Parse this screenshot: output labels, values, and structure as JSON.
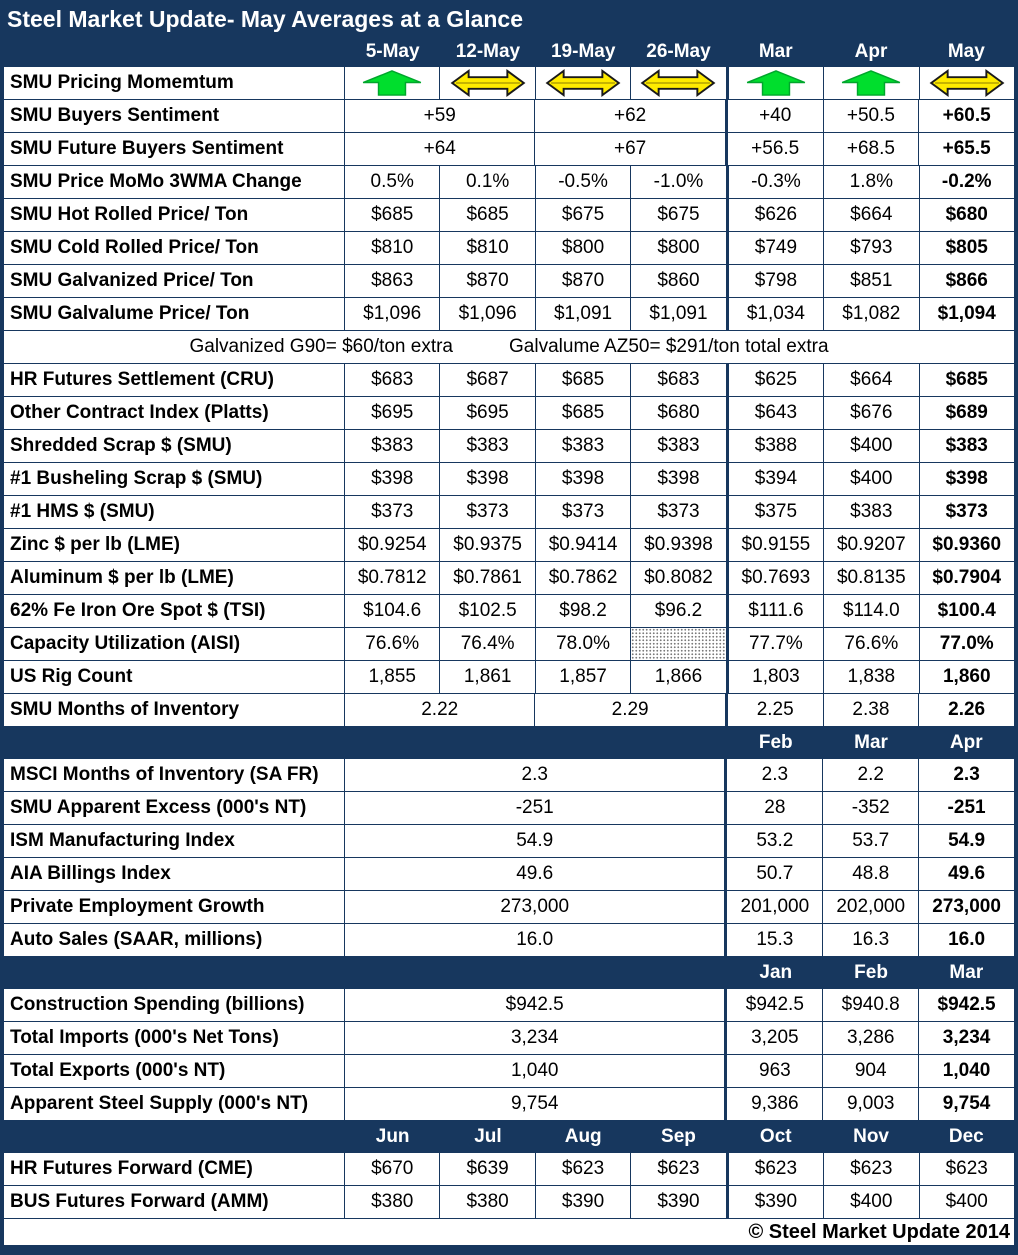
{
  "title": "Steel Market Update- May Averages at a Glance",
  "footer": "© Steel Market Update 2014",
  "colors": {
    "navy": "#17375E",
    "arrow_up_green": "#00DE2D",
    "arrow_up_green_edge": "#00A62C",
    "arrow_flat_yellow": "#FFEB00",
    "arrow_flat_edge": "#1a1a1a"
  },
  "note": {
    "part1": "Galvanized G90= $60/ton extra",
    "part2": "Galvalume AZ50= $291/ton total extra"
  },
  "sections": [
    {
      "header": [
        "5-May",
        "12-May",
        "19-May",
        "26-May",
        "Mar",
        "Apr",
        "May"
      ],
      "rows": [
        {
          "label": "SMU Pricing Momemtum",
          "cells": [
            {
              "i": "up"
            },
            {
              "i": "flat"
            },
            {
              "i": "flat"
            },
            {
              "i": "flat"
            },
            {
              "i": "up"
            },
            {
              "i": "up"
            },
            {
              "i": "flat"
            }
          ]
        },
        {
          "label": "SMU Buyers Sentiment",
          "cells": [
            {
              "t": "+59",
              "s": 2
            },
            {
              "t": "+62",
              "s": 2
            },
            {
              "t": "+40"
            },
            {
              "t": "+50.5"
            },
            {
              "t": "+60.5",
              "b": 1
            }
          ]
        },
        {
          "label": "SMU Future Buyers Sentiment",
          "cells": [
            {
              "t": "+64",
              "s": 2
            },
            {
              "t": "+67",
              "s": 2
            },
            {
              "t": "+56.5"
            },
            {
              "t": "+68.5"
            },
            {
              "t": "+65.5",
              "b": 1
            }
          ]
        },
        {
          "label": "SMU Price MoMo 3WMA Change",
          "cells": [
            {
              "t": "0.5%"
            },
            {
              "t": "0.1%"
            },
            {
              "t": "-0.5%"
            },
            {
              "t": "-1.0%"
            },
            {
              "t": "-0.3%"
            },
            {
              "t": "1.8%"
            },
            {
              "t": "-0.2%",
              "b": 1
            }
          ]
        },
        {
          "label": "SMU Hot Rolled Price/ Ton",
          "cells": [
            {
              "t": "$685"
            },
            {
              "t": "$685"
            },
            {
              "t": "$675"
            },
            {
              "t": "$675"
            },
            {
              "t": "$626"
            },
            {
              "t": "$664"
            },
            {
              "t": "$680",
              "b": 1
            }
          ]
        },
        {
          "label": "SMU Cold Rolled Price/ Ton",
          "cells": [
            {
              "t": "$810"
            },
            {
              "t": "$810"
            },
            {
              "t": "$800"
            },
            {
              "t": "$800"
            },
            {
              "t": "$749"
            },
            {
              "t": "$793"
            },
            {
              "t": "$805",
              "b": 1
            }
          ]
        },
        {
          "label": "SMU Galvanized Price/ Ton",
          "cells": [
            {
              "t": "$863"
            },
            {
              "t": "$870"
            },
            {
              "t": "$870"
            },
            {
              "t": "$860"
            },
            {
              "t": "$798"
            },
            {
              "t": "$851"
            },
            {
              "t": "$866",
              "b": 1
            }
          ]
        },
        {
          "label": "SMU Galvalume Price/ Ton",
          "cells": [
            {
              "t": "$1,096"
            },
            {
              "t": "$1,096"
            },
            {
              "t": "$1,091"
            },
            {
              "t": "$1,091"
            },
            {
              "t": "$1,034"
            },
            {
              "t": "$1,082"
            },
            {
              "t": "$1,094",
              "b": 1
            }
          ]
        },
        {
          "type": "note"
        },
        {
          "label": "HR Futures Settlement (CRU)",
          "cells": [
            {
              "t": "$683"
            },
            {
              "t": "$687"
            },
            {
              "t": "$685"
            },
            {
              "t": "$683"
            },
            {
              "t": "$625"
            },
            {
              "t": "$664"
            },
            {
              "t": "$685",
              "b": 1
            }
          ]
        },
        {
          "label": "Other Contract Index (Platts)",
          "cells": [
            {
              "t": "$695"
            },
            {
              "t": "$695"
            },
            {
              "t": "$685"
            },
            {
              "t": "$680"
            },
            {
              "t": "$643"
            },
            {
              "t": "$676"
            },
            {
              "t": "$689",
              "b": 1
            }
          ]
        },
        {
          "label": "Shredded Scrap $ (SMU)",
          "cells": [
            {
              "t": "$383"
            },
            {
              "t": "$383"
            },
            {
              "t": "$383"
            },
            {
              "t": "$383"
            },
            {
              "t": "$388"
            },
            {
              "t": "$400"
            },
            {
              "t": "$383",
              "b": 1
            }
          ]
        },
        {
          "label": "#1 Busheling Scrap $ (SMU)",
          "cells": [
            {
              "t": "$398"
            },
            {
              "t": "$398"
            },
            {
              "t": "$398"
            },
            {
              "t": "$398"
            },
            {
              "t": "$394"
            },
            {
              "t": "$400"
            },
            {
              "t": "$398",
              "b": 1
            }
          ]
        },
        {
          "label": "#1 HMS $ (SMU)",
          "cells": [
            {
              "t": "$373"
            },
            {
              "t": "$373"
            },
            {
              "t": "$373"
            },
            {
              "t": "$373"
            },
            {
              "t": "$375"
            },
            {
              "t": "$383"
            },
            {
              "t": "$373",
              "b": 1
            }
          ]
        },
        {
          "label": "Zinc $ per lb (LME)",
          "cells": [
            {
              "t": "$0.9254"
            },
            {
              "t": "$0.9375"
            },
            {
              "t": "$0.9414"
            },
            {
              "t": "$0.9398"
            },
            {
              "t": "$0.9155"
            },
            {
              "t": "$0.9207"
            },
            {
              "t": "$0.9360",
              "b": 1
            }
          ]
        },
        {
          "label": "Aluminum $ per lb (LME)",
          "cells": [
            {
              "t": "$0.7812"
            },
            {
              "t": "$0.7861"
            },
            {
              "t": "$0.7862"
            },
            {
              "t": "$0.8082"
            },
            {
              "t": "$0.7693"
            },
            {
              "t": "$0.8135"
            },
            {
              "t": "$0.7904",
              "b": 1
            }
          ]
        },
        {
          "label": "62% Fe Iron Ore Spot $ (TSI)",
          "cells": [
            {
              "t": "$104.6"
            },
            {
              "t": "$102.5"
            },
            {
              "t": "$98.2"
            },
            {
              "t": "$96.2"
            },
            {
              "t": "$111.6"
            },
            {
              "t": "$114.0"
            },
            {
              "t": "$100.4",
              "b": 1
            }
          ]
        },
        {
          "label": "Capacity Utilization (AISI)",
          "cells": [
            {
              "t": "76.6%"
            },
            {
              "t": "76.4%"
            },
            {
              "t": "78.0%"
            },
            {
              "t": "",
              "hatch": 1
            },
            {
              "t": "77.7%"
            },
            {
              "t": "76.6%"
            },
            {
              "t": "77.0%",
              "b": 1
            }
          ]
        },
        {
          "label": "US Rig Count",
          "cells": [
            {
              "t": "1,855"
            },
            {
              "t": "1,861"
            },
            {
              "t": "1,857"
            },
            {
              "t": "1,866"
            },
            {
              "t": "1,803"
            },
            {
              "t": "1,838"
            },
            {
              "t": "1,860",
              "b": 1
            }
          ]
        },
        {
          "label": "SMU Months of Inventory",
          "cells": [
            {
              "t": "2.22",
              "s": 2
            },
            {
              "t": "2.29",
              "s": 2
            },
            {
              "t": "2.25"
            },
            {
              "t": "2.38"
            },
            {
              "t": "2.26",
              "b": 1
            }
          ]
        }
      ]
    },
    {
      "header": [
        "",
        "",
        "",
        "",
        "Feb",
        "Mar",
        "Apr"
      ],
      "rows": [
        {
          "label": "MSCI Months of Inventory (SA FR)",
          "cells": [
            {
              "t": "2.3",
              "s": 4
            },
            {
              "t": "2.3"
            },
            {
              "t": "2.2"
            },
            {
              "t": "2.3",
              "b": 1
            }
          ]
        },
        {
          "label": "SMU Apparent Excess (000's NT)",
          "cells": [
            {
              "t": "-251",
              "s": 4
            },
            {
              "t": "28"
            },
            {
              "t": "-352"
            },
            {
              "t": "-251",
              "b": 1
            }
          ]
        },
        {
          "label": "ISM Manufacturing Index",
          "cells": [
            {
              "t": "54.9",
              "s": 4
            },
            {
              "t": "53.2"
            },
            {
              "t": "53.7"
            },
            {
              "t": "54.9",
              "b": 1
            }
          ]
        },
        {
          "label": "AIA Billings Index",
          "cells": [
            {
              "t": "49.6",
              "s": 4
            },
            {
              "t": "50.7"
            },
            {
              "t": "48.8"
            },
            {
              "t": "49.6",
              "b": 1
            }
          ]
        },
        {
          "label": "Private Employment Growth",
          "cells": [
            {
              "t": "273,000",
              "s": 4
            },
            {
              "t": "201,000"
            },
            {
              "t": "202,000"
            },
            {
              "t": "273,000",
              "b": 1
            }
          ]
        },
        {
          "label": "Auto Sales (SAAR, millions)",
          "cells": [
            {
              "t": "16.0",
              "s": 4
            },
            {
              "t": "15.3"
            },
            {
              "t": "16.3"
            },
            {
              "t": "16.0",
              "b": 1
            }
          ]
        }
      ]
    },
    {
      "header": [
        "",
        "",
        "",
        "",
        "Jan",
        "Feb",
        "Mar"
      ],
      "rows": [
        {
          "label": "Construction Spending (billions)",
          "cells": [
            {
              "t": "$942.5",
              "s": 4
            },
            {
              "t": "$942.5"
            },
            {
              "t": "$940.8"
            },
            {
              "t": "$942.5",
              "b": 1
            }
          ]
        },
        {
          "label": "Total Imports (000's Net Tons)",
          "cells": [
            {
              "t": "3,234",
              "s": 4
            },
            {
              "t": "3,205"
            },
            {
              "t": "3,286"
            },
            {
              "t": "3,234",
              "b": 1
            }
          ]
        },
        {
          "label": "Total Exports (000's NT)",
          "cells": [
            {
              "t": "1,040",
              "s": 4
            },
            {
              "t": "963"
            },
            {
              "t": "904"
            },
            {
              "t": "1,040",
              "b": 1
            }
          ]
        },
        {
          "label": "Apparent Steel Supply (000's NT)",
          "cells": [
            {
              "t": "9,754",
              "s": 4
            },
            {
              "t": "9,386"
            },
            {
              "t": "9,003"
            },
            {
              "t": "9,754",
              "b": 1
            }
          ]
        }
      ]
    },
    {
      "header": [
        "Jun",
        "Jul",
        "Aug",
        "Sep",
        "Oct",
        "Nov",
        "Dec"
      ],
      "rows": [
        {
          "label": "HR Futures Forward (CME)",
          "cells": [
            {
              "t": "$670"
            },
            {
              "t": "$639"
            },
            {
              "t": "$623"
            },
            {
              "t": "$623"
            },
            {
              "t": "$623"
            },
            {
              "t": "$623"
            },
            {
              "t": "$623"
            }
          ]
        },
        {
          "label": "BUS Futures Forward (AMM)",
          "cells": [
            {
              "t": "$380"
            },
            {
              "t": "$380"
            },
            {
              "t": "$390"
            },
            {
              "t": "$390"
            },
            {
              "t": "$390"
            },
            {
              "t": "$400"
            },
            {
              "t": "$400"
            }
          ]
        }
      ]
    }
  ]
}
